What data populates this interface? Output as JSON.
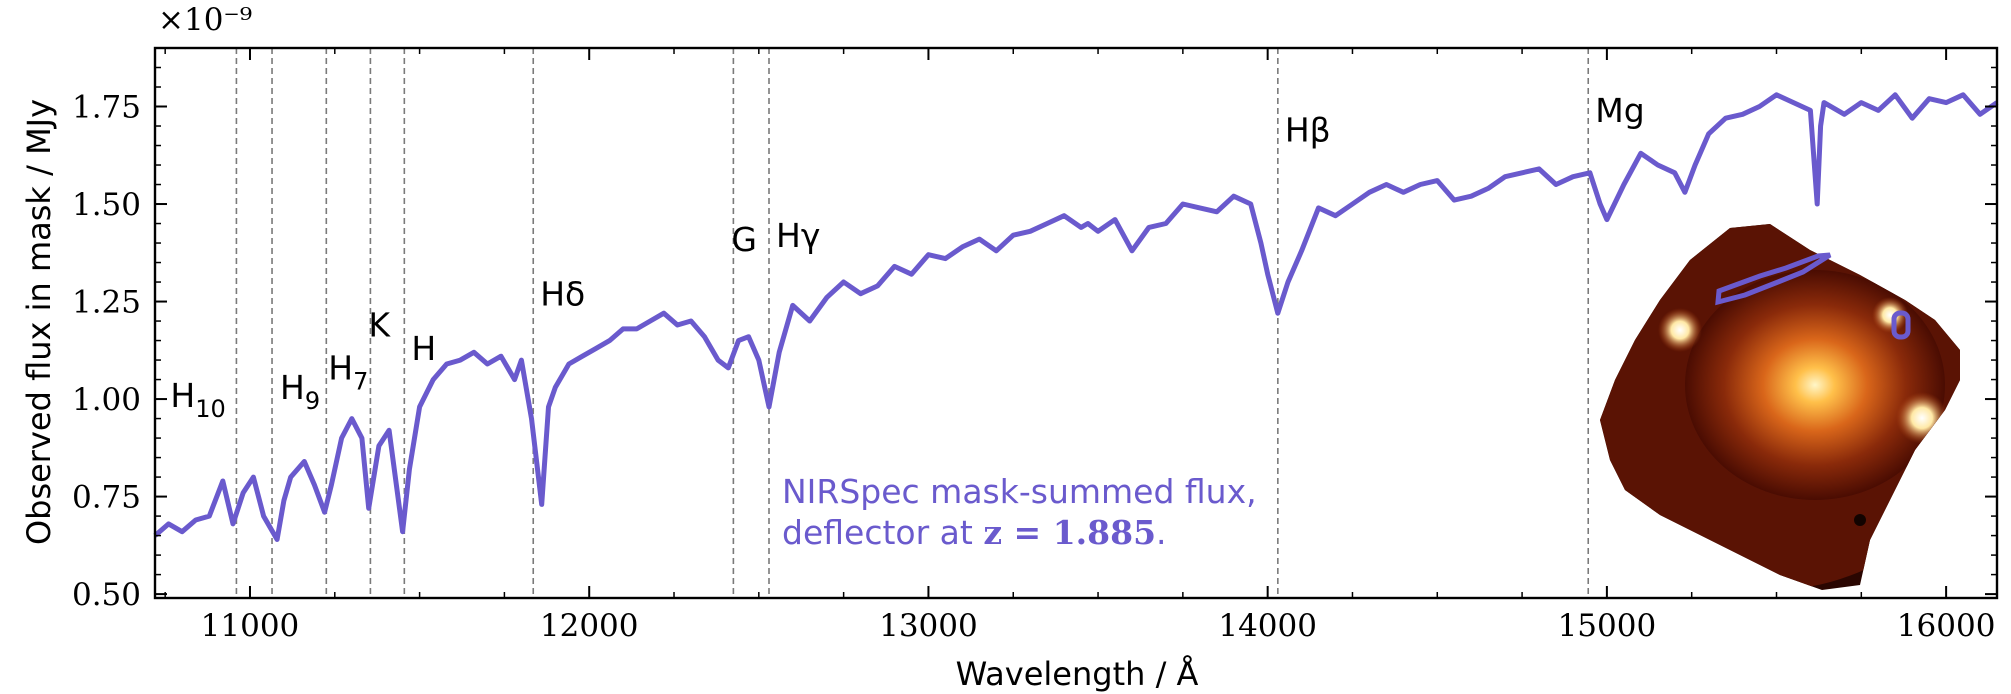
{
  "chart_data": {
    "type": "line",
    "xlabel": "Wavelength / Å",
    "ylabel": "Observed flux in mask / MJy",
    "y_multiplier": "×10⁻⁹",
    "xlim": [
      10720,
      16150
    ],
    "ylim": [
      0.49,
      1.9
    ],
    "x_ticks": [
      11000,
      12000,
      13000,
      14000,
      15000,
      16000
    ],
    "x_tick_labels": [
      "11000",
      "12000",
      "13000",
      "14000",
      "15000",
      "16000"
    ],
    "y_ticks": [
      0.5,
      0.75,
      1.0,
      1.25,
      1.5,
      1.75
    ],
    "y_tick_labels": [
      "0.50",
      "0.75",
      "1.00",
      "1.25",
      "1.50",
      "1.75"
    ],
    "grid": false,
    "series": [
      {
        "color": "#6a5acd",
        "x": [
          10720,
          10760,
          10800,
          10840,
          10880,
          10920,
          10950,
          10980,
          11010,
          11040,
          11080,
          11100,
          11120,
          11160,
          11190,
          11220,
          11240,
          11270,
          11300,
          11330,
          11350,
          11380,
          11410,
          11450,
          11470,
          11500,
          11540,
          11580,
          11620,
          11660,
          11700,
          11740,
          11780,
          11800,
          11830,
          11860,
          11880,
          11900,
          11940,
          11980,
          12020,
          12060,
          12100,
          12140,
          12180,
          12220,
          12260,
          12300,
          12340,
          12380,
          12410,
          12440,
          12470,
          12500,
          12530,
          12560,
          12600,
          12650,
          12700,
          12750,
          12800,
          12850,
          12900,
          12950,
          13000,
          13050,
          13100,
          13150,
          13200,
          13250,
          13300,
          13350,
          13400,
          13450,
          13470,
          13500,
          13550,
          13600,
          13650,
          13700,
          13750,
          13800,
          13850,
          13900,
          13950,
          13980,
          14000,
          14030,
          14060,
          14100,
          14150,
          14200,
          14250,
          14300,
          14350,
          14400,
          14450,
          14500,
          14550,
          14600,
          14650,
          14700,
          14750,
          14800,
          14850,
          14900,
          14950,
          14980,
          15000,
          15050,
          15100,
          15150,
          15200,
          15230,
          15260,
          15300,
          15350,
          15400,
          15450,
          15500,
          15550,
          15600,
          15620,
          15630,
          15640,
          15700,
          15750,
          15800,
          15850,
          15900,
          15950,
          16000,
          16050,
          16100,
          16150
        ],
        "y": [
          0.65,
          0.68,
          0.66,
          0.69,
          0.7,
          0.79,
          0.68,
          0.76,
          0.8,
          0.7,
          0.64,
          0.74,
          0.8,
          0.84,
          0.78,
          0.71,
          0.78,
          0.9,
          0.95,
          0.9,
          0.72,
          0.88,
          0.92,
          0.66,
          0.82,
          0.98,
          1.05,
          1.09,
          1.1,
          1.12,
          1.09,
          1.11,
          1.05,
          1.1,
          0.95,
          0.73,
          0.98,
          1.03,
          1.09,
          1.11,
          1.13,
          1.15,
          1.18,
          1.18,
          1.2,
          1.22,
          1.19,
          1.2,
          1.16,
          1.1,
          1.08,
          1.15,
          1.16,
          1.1,
          0.98,
          1.12,
          1.24,
          1.2,
          1.26,
          1.3,
          1.27,
          1.29,
          1.34,
          1.32,
          1.37,
          1.36,
          1.39,
          1.41,
          1.38,
          1.42,
          1.43,
          1.45,
          1.47,
          1.44,
          1.45,
          1.43,
          1.46,
          1.38,
          1.44,
          1.45,
          1.5,
          1.49,
          1.48,
          1.52,
          1.5,
          1.4,
          1.32,
          1.22,
          1.3,
          1.38,
          1.49,
          1.47,
          1.5,
          1.53,
          1.55,
          1.53,
          1.55,
          1.56,
          1.51,
          1.52,
          1.54,
          1.57,
          1.58,
          1.59,
          1.55,
          1.57,
          1.58,
          1.5,
          1.46,
          1.55,
          1.63,
          1.6,
          1.58,
          1.53,
          1.6,
          1.68,
          1.72,
          1.73,
          1.75,
          1.78,
          1.76,
          1.74,
          1.5,
          1.7,
          1.76,
          1.73,
          1.76,
          1.74,
          1.78,
          1.72,
          1.77,
          1.76,
          1.78,
          1.73,
          1.76
        ]
      }
    ],
    "vlines": [
      {
        "x": 10960,
        "label": "H",
        "sub": "10",
        "label_y": 0.98
      },
      {
        "x": 11065,
        "label": "H",
        "sub": "9",
        "label_y": 1.0
      },
      {
        "x": 11225,
        "label": "H",
        "sub": "7",
        "label_y": 1.05
      },
      {
        "x": 11355,
        "label": "K",
        "sub": "",
        "label_y": 1.16
      },
      {
        "x": 11455,
        "label": "H",
        "sub": "",
        "label_y": 1.1
      },
      {
        "x": 11835,
        "label": "Hδ",
        "sub": "",
        "label_y": 1.24
      },
      {
        "x": 12425,
        "label": "G",
        "sub": "",
        "label_y": 1.38
      },
      {
        "x": 12530,
        "label": "Hγ",
        "sub": "",
        "label_y": 1.39
      },
      {
        "x": 14030,
        "label": "Hβ",
        "sub": "",
        "label_y": 1.66
      },
      {
        "x": 14945,
        "label": "Mg",
        "sub": "",
        "label_y": 1.71
      }
    ],
    "annotation": {
      "line1": "NIRSpec mask-summed flux,",
      "line2_text": "deflector at ",
      "line2_bold": "z = 1.885",
      "line2_end": "."
    }
  },
  "colors": {
    "series": "#6a5acd",
    "vline": "#7a7a7a",
    "annotation": "#6a5acd"
  }
}
